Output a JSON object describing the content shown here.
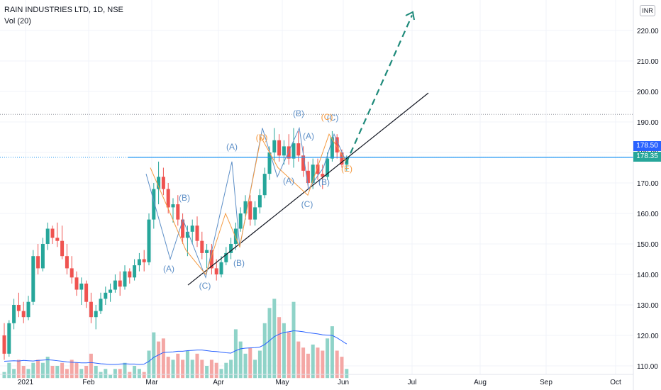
{
  "header": {
    "title": "RAIN INDUSTRIES LTD, 1D, NSE",
    "subtitle": "Vol (20)",
    "currency": "INR"
  },
  "price_tags": {
    "upper": "178.50",
    "lower": "178.35"
  },
  "colors": {
    "up": "#26a69a",
    "down": "#ef5350",
    "vol_up": "#8fd3c8",
    "vol_down": "#f4a7a5",
    "wave_blue": "#5d8fc7",
    "wave_orange": "#f59b42",
    "level": "#2196f3",
    "projection": "#1e8a7a"
  },
  "chart_data": {
    "type": "candlestick",
    "y_ticks": [
      "220.00",
      "210.00",
      "200.00",
      "190.00",
      "180.00",
      "170.00",
      "160.00",
      "150.00",
      "140.00",
      "130.00",
      "120.00",
      "110.00"
    ],
    "x_ticks": [
      "2021",
      "Feb",
      "Mar",
      "Apr",
      "May",
      "Jun",
      "Jul",
      "Aug",
      "Sep",
      "Oct"
    ],
    "ylim": [
      106,
      224
    ],
    "ohlc": [
      [
        0,
        120,
        124,
        112,
        114
      ],
      [
        1,
        114,
        125,
        113,
        124
      ],
      [
        2,
        124,
        132,
        122,
        130
      ],
      [
        3,
        130,
        134,
        126,
        128
      ],
      [
        4,
        128,
        131,
        124,
        126
      ],
      [
        5,
        126,
        133,
        125,
        131
      ],
      [
        6,
        131,
        148,
        130,
        146
      ],
      [
        7,
        146,
        150,
        140,
        142
      ],
      [
        8,
        142,
        152,
        141,
        150
      ],
      [
        9,
        150,
        157,
        148,
        155
      ],
      [
        10,
        155,
        156,
        150,
        152
      ],
      [
        11,
        152,
        157,
        149,
        151
      ],
      [
        12,
        151,
        156,
        145,
        146
      ],
      [
        13,
        146,
        150,
        140,
        142
      ],
      [
        14,
        142,
        146,
        137,
        139
      ],
      [
        15,
        139,
        141,
        133,
        135
      ],
      [
        16,
        135,
        139,
        130,
        137
      ],
      [
        17,
        137,
        138,
        129,
        131
      ],
      [
        18,
        131,
        134,
        124,
        126
      ],
      [
        19,
        126,
        130,
        122,
        128
      ],
      [
        20,
        128,
        134,
        127,
        132
      ],
      [
        21,
        132,
        136,
        130,
        134
      ],
      [
        22,
        134,
        137,
        131,
        135
      ],
      [
        23,
        135,
        140,
        134,
        138
      ],
      [
        24,
        138,
        141,
        133,
        136
      ],
      [
        25,
        136,
        143,
        135,
        141
      ],
      [
        26,
        141,
        142,
        137,
        139
      ],
      [
        27,
        139,
        145,
        138,
        143
      ],
      [
        28,
        143,
        147,
        141,
        145
      ],
      [
        29,
        145,
        148,
        141,
        144
      ],
      [
        30,
        144,
        160,
        143,
        158
      ],
      [
        31,
        158,
        170,
        155,
        168
      ],
      [
        32,
        168,
        177,
        163,
        172
      ],
      [
        33,
        172,
        175,
        166,
        168
      ],
      [
        34,
        168,
        170,
        160,
        162
      ],
      [
        35,
        162,
        165,
        157,
        163
      ],
      [
        36,
        163,
        166,
        156,
        158
      ],
      [
        37,
        158,
        160,
        150,
        152
      ],
      [
        38,
        152,
        156,
        146,
        154
      ],
      [
        39,
        154,
        158,
        150,
        156
      ],
      [
        40,
        156,
        159,
        149,
        151
      ],
      [
        41,
        151,
        154,
        145,
        147
      ],
      [
        42,
        147,
        150,
        142,
        148
      ],
      [
        43,
        148,
        150,
        140,
        142
      ],
      [
        44,
        142,
        145,
        138,
        140
      ],
      [
        45,
        140,
        146,
        139,
        144
      ],
      [
        46,
        144,
        149,
        143,
        147
      ],
      [
        47,
        147,
        152,
        145,
        150
      ],
      [
        48,
        150,
        157,
        148,
        155
      ],
      [
        49,
        155,
        162,
        154,
        160
      ],
      [
        50,
        160,
        166,
        158,
        164
      ],
      [
        51,
        164,
        166,
        156,
        158
      ],
      [
        52,
        158,
        164,
        156,
        162
      ],
      [
        53,
        162,
        168,
        160,
        166
      ],
      [
        54,
        166,
        175,
        165,
        173
      ],
      [
        55,
        173,
        182,
        171,
        180
      ],
      [
        56,
        180,
        188,
        177,
        184
      ],
      [
        57,
        184,
        186,
        177,
        179
      ],
      [
        58,
        179,
        184,
        176,
        182
      ],
      [
        59,
        182,
        186,
        176,
        178
      ],
      [
        60,
        178,
        188,
        175,
        183
      ],
      [
        61,
        183,
        187,
        177,
        179
      ],
      [
        62,
        179,
        182,
        172,
        174
      ],
      [
        63,
        174,
        177,
        168,
        170
      ],
      [
        64,
        170,
        178,
        168,
        176
      ],
      [
        65,
        176,
        178,
        171,
        173
      ],
      [
        66,
        173,
        176,
        168,
        172
      ],
      [
        67,
        172,
        180,
        171,
        178
      ],
      [
        68,
        178,
        187,
        177,
        185
      ],
      [
        69,
        185,
        186,
        178,
        180
      ],
      [
        70,
        180,
        181,
        175,
        176
      ],
      [
        71,
        176,
        179,
        174,
        178
      ]
    ],
    "volume": [
      [
        0,
        108,
        1
      ],
      [
        1,
        111,
        1
      ],
      [
        2,
        109,
        1
      ],
      [
        3,
        112,
        0
      ],
      [
        4,
        110,
        0
      ],
      [
        5,
        109,
        1
      ],
      [
        6,
        111,
        1
      ],
      [
        7,
        112,
        0
      ],
      [
        8,
        111,
        1
      ],
      [
        9,
        113,
        1
      ],
      [
        10,
        110,
        0
      ],
      [
        11,
        110,
        1
      ],
      [
        12,
        111,
        0
      ],
      [
        13,
        109,
        0
      ],
      [
        14,
        112,
        0
      ],
      [
        15,
        111,
        0
      ],
      [
        16,
        109,
        1
      ],
      [
        17,
        110,
        0
      ],
      [
        18,
        114,
        0
      ],
      [
        19,
        110,
        1
      ],
      [
        20,
        108,
        1
      ],
      [
        21,
        109,
        1
      ],
      [
        22,
        107,
        1
      ],
      [
        23,
        109,
        1
      ],
      [
        24,
        109,
        0
      ],
      [
        25,
        111,
        1
      ],
      [
        26,
        108,
        0
      ],
      [
        27,
        110,
        1
      ],
      [
        28,
        109,
        1
      ],
      [
        29,
        108,
        0
      ],
      [
        30,
        115,
        1
      ],
      [
        31,
        121,
        1
      ],
      [
        32,
        118,
        0
      ],
      [
        33,
        119,
        0
      ],
      [
        34,
        113,
        0
      ],
      [
        35,
        112,
        1
      ],
      [
        36,
        114,
        0
      ],
      [
        37,
        112,
        0
      ],
      [
        38,
        115,
        1
      ],
      [
        39,
        112,
        1
      ],
      [
        40,
        114,
        0
      ],
      [
        41,
        112,
        0
      ],
      [
        42,
        110,
        1
      ],
      [
        43,
        112,
        0
      ],
      [
        44,
        111,
        0
      ],
      [
        45,
        109,
        1
      ],
      [
        46,
        111,
        1
      ],
      [
        47,
        112,
        1
      ],
      [
        48,
        122,
        1
      ],
      [
        49,
        118,
        1
      ],
      [
        50,
        114,
        1
      ],
      [
        51,
        116,
        0
      ],
      [
        52,
        112,
        1
      ],
      [
        53,
        115,
        1
      ],
      [
        54,
        124,
        1
      ],
      [
        55,
        129,
        1
      ],
      [
        56,
        132,
        1
      ],
      [
        57,
        126,
        0
      ],
      [
        58,
        124,
        1
      ],
      [
        59,
        121,
        0
      ],
      [
        60,
        131,
        1
      ],
      [
        61,
        118,
        0
      ],
      [
        62,
        116,
        0
      ],
      [
        63,
        114,
        0
      ],
      [
        64,
        117,
        1
      ],
      [
        65,
        116,
        0
      ],
      [
        66,
        115,
        0
      ],
      [
        67,
        119,
        1
      ],
      [
        68,
        123,
        1
      ],
      [
        69,
        115,
        0
      ],
      [
        70,
        113,
        0
      ],
      [
        71,
        109,
        1
      ]
    ],
    "volume_ma": [
      111.5,
      111.6,
      111.7,
      111.6,
      111.8,
      111.7,
      111.6,
      111.8,
      111.9,
      112,
      111.9,
      111.7,
      111.5,
      111.3,
      111.2,
      111.1,
      111,
      111,
      111.1,
      110.9,
      110.7,
      110.6,
      110.5,
      110.5,
      110.6,
      110.7,
      110.6,
      110.6,
      110.5,
      110.6,
      111.5,
      112.8,
      113.6,
      114.4,
      114.5,
      114.6,
      114.8,
      114.8,
      115,
      115.1,
      115.2,
      115.2,
      115,
      114.8,
      114.7,
      114.5,
      114.3,
      114.2,
      115,
      115.6,
      115.8,
      115.9,
      116,
      116.2,
      117,
      118.3,
      119.6,
      120.4,
      121,
      121.2,
      121.5,
      121.4,
      121.2,
      120.9,
      120.7,
      120.5,
      120.2,
      120.1,
      120,
      119.2,
      118.2,
      117.2
    ],
    "annotations": [
      "(A)",
      "(B)",
      "(C)",
      "(A)",
      "(B)",
      "(C)",
      "(A)",
      "(B)",
      "(C)",
      "(A)",
      "(B)",
      "(C)",
      "(D)",
      "(E)"
    ]
  }
}
